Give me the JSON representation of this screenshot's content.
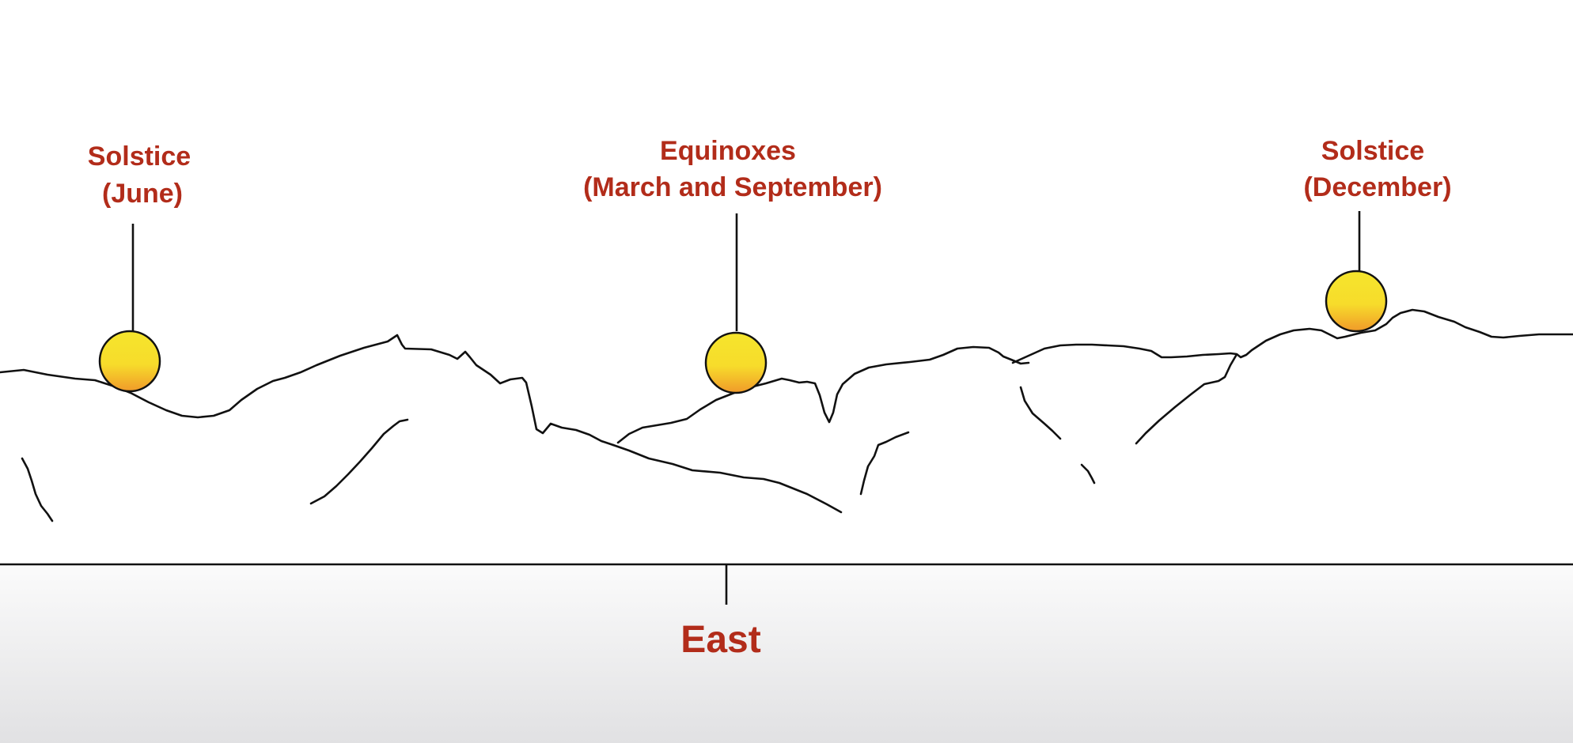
{
  "markers": [
    {
      "id": "june-solstice",
      "title": "Solstice",
      "subtitle": "(June)"
    },
    {
      "id": "equinoxes",
      "title": "Equinoxes",
      "subtitle": "(March and September)"
    },
    {
      "id": "december-solstice",
      "title": "Solstice",
      "subtitle": "(December)"
    }
  ],
  "direction_label": "East",
  "colors": {
    "label": "#b22c1a",
    "sun_top": "#f5e52c",
    "sun_bottom": "#f09a2a",
    "ground_top": "#fbfbfb",
    "ground_bottom": "#e1e1e3",
    "line": "#111111"
  }
}
